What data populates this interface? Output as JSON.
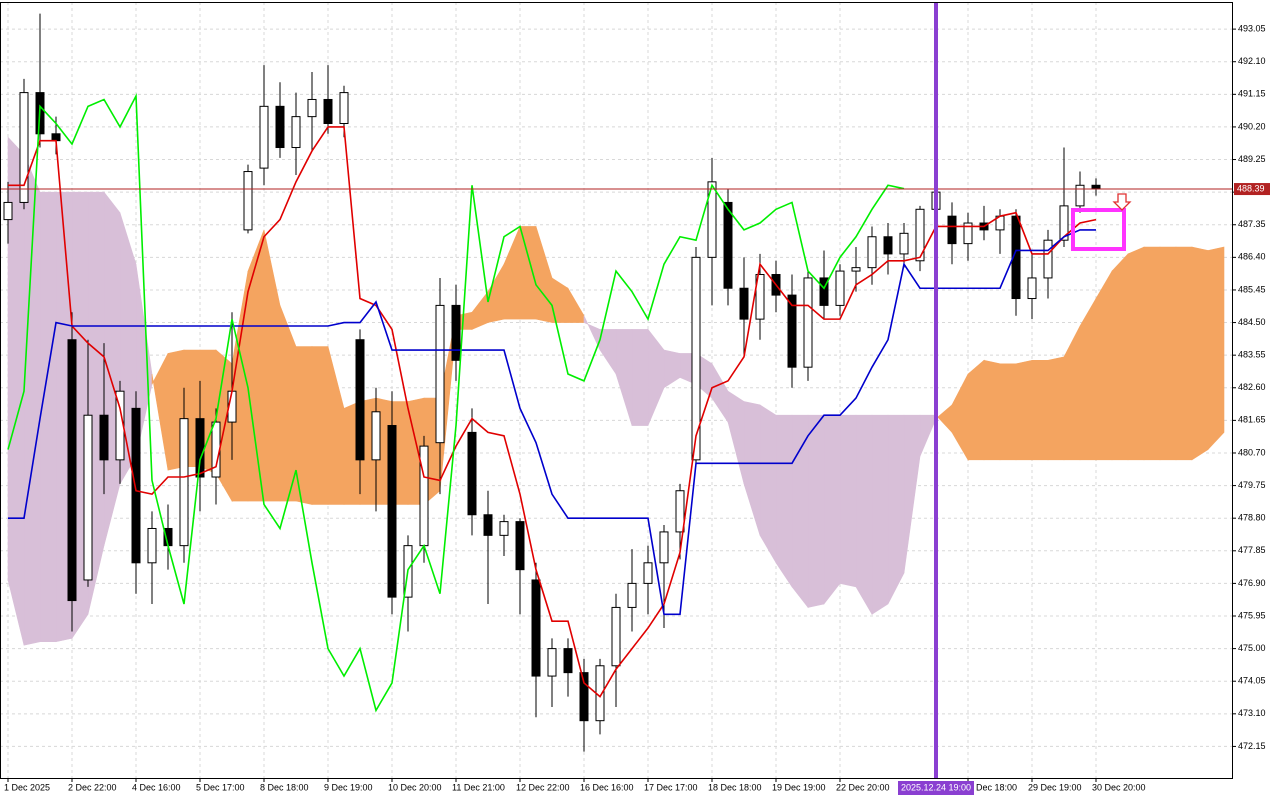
{
  "chart_data": {
    "type": "candlestick",
    "categories": [
      "1 Dec 2025",
      null,
      null,
      null,
      "2 Dec 22:00",
      null,
      null,
      null,
      "4 Dec 16:00",
      null,
      null,
      null,
      "5 Dec 17:00",
      null,
      null,
      null,
      "8 Dec 18:00",
      null,
      null,
      null,
      "9 Dec 19:00",
      null,
      null,
      null,
      "10 Dec 20:00",
      null,
      null,
      null,
      "11 Dec 21:00",
      null,
      null,
      null,
      "12 Dec 22:00",
      null,
      null,
      null,
      "16 Dec 16:00",
      null,
      null,
      null,
      "17 Dec 17:00",
      null,
      null,
      null,
      "18 Dec 18:00",
      null,
      null,
      null,
      "19 Dec 19:00",
      null,
      null,
      null,
      "22 Dec 20:00",
      null,
      null,
      null,
      null,
      null,
      "2025.12.24 19:00",
      null,
      "Dec 18:00",
      null,
      null,
      null,
      "29 Dec 19:00",
      null,
      null,
      null,
      "30 Dec 20:00",
      null,
      null,
      null,
      null,
      null,
      null,
      null,
      null
    ],
    "open": [
      487.5,
      488,
      491.2,
      490,
      484,
      477,
      481.8,
      480.5,
      482,
      477.5,
      478.5,
      478,
      481.7,
      480,
      481.6,
      487.2,
      489,
      490.8,
      489.6,
      490.5,
      491,
      490.3,
      484,
      480.5,
      481.5,
      476.5,
      478,
      481,
      485,
      481.3,
      478.9,
      478.3,
      478.7,
      477,
      474.2,
      475,
      474.3,
      472.9,
      474.5,
      476.2,
      476.9,
      477.5,
      478.4,
      480.5,
      486.4,
      488,
      485.5,
      484.6,
      485.9,
      485.3,
      483.2,
      485.8,
      485,
      486,
      486.1,
      487,
      486.5,
      486.3,
      487.8,
      487.6,
      486.8,
      487.4,
      487.2,
      487.6,
      485.2,
      485.8,
      486.9,
      487.9,
      488.5,
      null,
      null,
      null,
      null,
      null,
      null,
      null,
      null
    ],
    "high": [
      488.6,
      491.6,
      493.5,
      490.5,
      484.8,
      484,
      483.9,
      482.8,
      482.5,
      479,
      479.2,
      482.6,
      482.8,
      482,
      484.8,
      489.1,
      492,
      491.5,
      491.2,
      491.8,
      492,
      491.4,
      484.3,
      482.6,
      482.5,
      478.3,
      481.2,
      485.8,
      485.6,
      482,
      479.6,
      478.9,
      478.8,
      477.5,
      475.3,
      475.3,
      474.7,
      474.7,
      476.6,
      477.9,
      478,
      478.6,
      479.8,
      486.7,
      489.3,
      488.4,
      486.4,
      486.5,
      486.3,
      485.9,
      486,
      486.6,
      486.2,
      486.7,
      487.3,
      487.4,
      487.4,
      487.9,
      489,
      488,
      487.7,
      487.9,
      487.8,
      487.8,
      486.5,
      487.2,
      489.6,
      488.9,
      488.7,
      null,
      null,
      null,
      null,
      null,
      null,
      null,
      null
    ],
    "low": [
      486.8,
      487.8,
      489.6,
      489.4,
      475.5,
      476.8,
      479.5,
      479.8,
      476.6,
      476.3,
      477.3,
      477.5,
      479,
      479.2,
      480.5,
      487.1,
      488.5,
      489.3,
      488.8,
      489.5,
      490,
      489.9,
      479.5,
      479,
      476,
      475.5,
      477.5,
      479.5,
      482.8,
      478.3,
      476.3,
      477.7,
      476,
      473,
      473.3,
      473.6,
      472,
      472.5,
      473.3,
      475.5,
      476,
      475.6,
      477.6,
      480.3,
      485,
      485,
      483.5,
      484,
      484.8,
      482.6,
      482.8,
      484.6,
      484.7,
      485.4,
      485.6,
      485.9,
      486.1,
      486,
      487.4,
      486.2,
      486.3,
      486.9,
      486.5,
      484.7,
      484.6,
      485.2,
      486.7,
      487.7,
      488.2,
      null,
      null,
      null,
      null,
      null,
      null,
      null,
      null
    ],
    "close": [
      488,
      491.2,
      490,
      489.8,
      476.4,
      481.8,
      480.5,
      482.5,
      477.5,
      478.5,
      478,
      481.7,
      480,
      481.6,
      482.5,
      488.9,
      490.8,
      489.6,
      490.5,
      491,
      490.3,
      491.2,
      480.5,
      481.9,
      476.5,
      478,
      480.9,
      485,
      483.4,
      478.9,
      478.3,
      478.7,
      477.3,
      474.2,
      475,
      474.3,
      472.9,
      474.5,
      476.2,
      476.9,
      477.5,
      478.4,
      479.6,
      486.4,
      488.6,
      485.5,
      484.6,
      485.9,
      485.3,
      483.2,
      485.8,
      485,
      486,
      486.1,
      487,
      486.5,
      487.1,
      487.8,
      488.3,
      486.8,
      487.4,
      487.2,
      487.6,
      485.2,
      485.8,
      486.9,
      487.9,
      488.5,
      488.4,
      null,
      null,
      null,
      null,
      null,
      null,
      null,
      null
    ],
    "up_color": "#ffffff",
    "down_color": "#000000",
    "cloud": {
      "bull_color": "#f4a460",
      "bear_color": "#d8bfd8",
      "span_a": [
        477,
        475.1,
        475.2,
        475.2,
        475.3,
        476,
        478,
        479.8,
        480.6,
        482.7,
        483.6,
        483.7,
        483.7,
        483.7,
        483.3,
        486,
        487.2,
        485,
        483.8,
        483.8,
        483.8,
        482,
        482.2,
        482.3,
        482.2,
        482.2,
        482.3,
        482.3,
        484.7,
        484.8,
        485.4,
        486.2,
        487.3,
        487.3,
        485.8,
        485.5,
        484.7,
        483.7,
        483,
        481.5,
        481.5,
        482.6,
        482.9,
        482.7,
        482.3,
        481.6,
        479.8,
        478.3,
        477.5,
        476.8,
        476.2,
        476.3,
        476.9,
        476.8,
        476,
        476.3,
        477.2,
        480.6,
        481.7,
        482.1,
        483,
        483.4,
        483.3,
        483.3,
        483.4,
        483.4,
        483.5,
        484.4,
        485.2,
        486,
        486.5,
        486.7,
        486.7,
        486.7,
        486.7,
        486.6,
        486.7
      ],
      "span_b": [
        489.9,
        489.4,
        488.3,
        488.3,
        488.3,
        488.3,
        488.3,
        487.7,
        486.2,
        483,
        480.2,
        480.3,
        480.3,
        480.1,
        479.3,
        479.3,
        479.3,
        479.3,
        479.3,
        479.2,
        479.2,
        479.2,
        479.2,
        479.2,
        479.2,
        479.2,
        479.2,
        479.6,
        484.3,
        484.3,
        484.5,
        484.6,
        484.6,
        484.6,
        484.5,
        484.5,
        484.5,
        484.3,
        484.3,
        484.3,
        484.3,
        483.7,
        483.6,
        483.6,
        483.3,
        482.5,
        482.2,
        482.1,
        481.8,
        481.8,
        481.8,
        481.8,
        481.8,
        481.8,
        481.8,
        481.8,
        481.8,
        481.8,
        481.8,
        481.3,
        480.5,
        480.5,
        480.5,
        480.5,
        480.5,
        480.5,
        480.5,
        480.5,
        480.5,
        480.5,
        480.5,
        480.5,
        480.5,
        480.5,
        480.5,
        480.8,
        481.3
      ]
    },
    "lines": [
      {
        "color": "#e00000",
        "values": [
          488.5,
          488.5,
          489.8,
          489.8,
          484.4,
          483.9,
          483.5,
          482,
          479.6,
          479.5,
          480,
          480,
          480.1,
          480.3,
          482.5,
          485.4,
          487,
          487.5,
          488.6,
          489.5,
          490.2,
          490.2,
          485.2,
          485,
          484.3,
          482,
          480,
          479.9,
          480.9,
          481.7,
          481.3,
          481.2,
          479.5,
          477.3,
          475.8,
          475.8,
          474,
          473.6,
          474.4,
          475,
          475.6,
          476.3,
          477.8,
          481.2,
          482.6,
          482.8,
          483.5,
          486.2,
          485.6,
          485,
          485,
          484.6,
          484.6,
          485.6,
          485.9,
          486.3,
          486.3,
          486.4,
          487.3,
          487.3,
          487.3,
          487.3,
          487.6,
          487.7,
          486.5,
          486.5,
          487,
          487.4,
          487.5,
          null,
          null,
          null,
          null,
          null,
          null,
          null,
          null
        ]
      },
      {
        "color": "#0000cc",
        "values": [
          478.8,
          478.8,
          481.7,
          484.5,
          484.4,
          484.4,
          484.4,
          484.4,
          484.4,
          484.4,
          484.4,
          484.4,
          484.4,
          484.4,
          484.4,
          484.4,
          484.4,
          484.4,
          484.4,
          484.4,
          484.4,
          484.5,
          484.5,
          485.1,
          483.7,
          483.7,
          483.7,
          483.7,
          483.7,
          483.7,
          483.7,
          483.7,
          482,
          481,
          479.5,
          478.8,
          478.8,
          478.8,
          478.8,
          478.8,
          478.8,
          476,
          476,
          480.4,
          480.4,
          480.4,
          480.4,
          480.4,
          480.4,
          480.4,
          481.2,
          481.8,
          481.8,
          482.3,
          483.2,
          484,
          486.2,
          485.5,
          485.5,
          485.5,
          485.5,
          485.5,
          485.5,
          486.6,
          486.6,
          486.6,
          487,
          487.2,
          487.2,
          null,
          null,
          null,
          null,
          null,
          null,
          null,
          null
        ]
      },
      {
        "color": "#00ee00",
        "values": [
          480.8,
          482.5,
          490.8,
          490.3,
          489.7,
          490.8,
          491,
          490.2,
          491.1,
          479.9,
          478,
          476.3,
          480.5,
          481.7,
          484.6,
          482.6,
          479.2,
          478.5,
          480.2,
          477.5,
          475,
          474.2,
          475,
          473.2,
          474,
          477.3,
          478,
          476.6,
          481.5,
          488.5,
          485.1,
          487,
          487.3,
          485.6,
          485,
          483,
          482.8,
          484,
          486,
          485.4,
          484.6,
          486.2,
          487,
          486.9,
          488.5,
          487.8,
          487.2,
          487.4,
          487.8,
          488,
          486,
          485.5,
          486.4,
          487,
          487.8,
          488.5,
          488.4,
          null,
          null,
          null,
          null,
          null,
          null,
          null,
          null,
          null,
          null,
          null,
          null,
          null,
          null,
          null,
          null,
          null,
          null,
          null,
          null
        ]
      }
    ],
    "ylim": [
      471.23,
      493.84
    ],
    "yticks": [
      472.15,
      {
        "value": 473.1,
        "label": "473.10"
      },
      474.05,
      {
        "value": 475,
        "label": "475.00"
      },
      475.95,
      {
        "value": 476.9,
        "label": "476.90"
      },
      477.85,
      {
        "value": 478.8,
        "label": "478.80"
      },
      479.75,
      {
        "value": 480.7,
        "label": "480.70"
      },
      481.65,
      {
        "value": 482.6,
        "label": "482.60"
      },
      483.55,
      {
        "value": 484.5,
        "label": "484.50"
      },
      485.45,
      {
        "value": 486.4,
        "label": "486.40"
      },
      487.35,
      {
        "value": 488.3,
        "label": "488.30"
      },
      489.25,
      {
        "value": 490.2,
        "label": "490.20"
      },
      491.15,
      {
        "value": 492.1,
        "label": "492.10"
      },
      493.05
    ],
    "grid": true,
    "last_price": 488.39,
    "last_price_color": "#b22222",
    "crosshair_index": 58,
    "crosshair_color": "#8a3fd1"
  }
}
